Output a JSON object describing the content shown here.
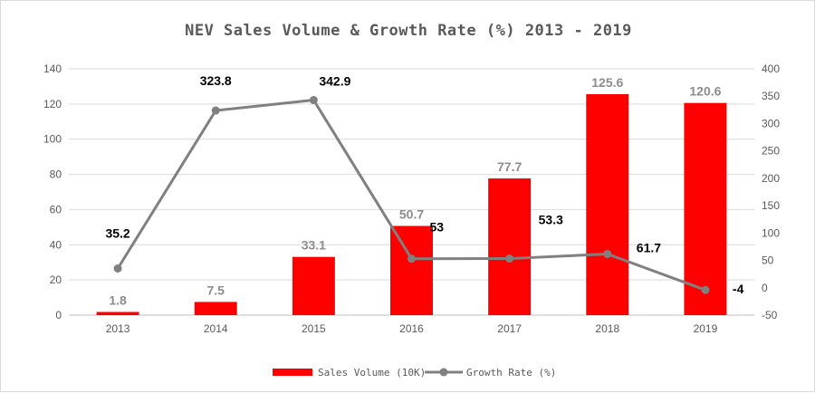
{
  "chart_data": {
    "type": "bar+line",
    "title": "NEV Sales Volume & Growth Rate (%) 2013 - 2019",
    "categories": [
      "2013",
      "2014",
      "2015",
      "2016",
      "2017",
      "2018",
      "2019"
    ],
    "series": [
      {
        "name": "Sales Volume (10K)",
        "type": "bar",
        "axis": "left",
        "color": "#ff0000",
        "values": [
          1.8,
          7.5,
          33.1,
          50.7,
          77.7,
          125.6,
          120.6
        ],
        "labels": [
          "1.8",
          "7.5",
          "33.1",
          "50.7",
          "77.7",
          "125.6",
          "120.6"
        ]
      },
      {
        "name": "Growth Rate (%)",
        "type": "line",
        "axis": "right",
        "color": "#808080",
        "values": [
          35.2,
          323.8,
          342.9,
          53,
          53.3,
          61.7,
          -4
        ],
        "labels": [
          "35.2",
          "323.8",
          "342.9",
          "53",
          "53.3",
          "61.7",
          "-4"
        ]
      }
    ],
    "y_left": {
      "min": 0,
      "max": 140,
      "step": 20,
      "ticks": [
        "0",
        "20",
        "40",
        "60",
        "80",
        "100",
        "120",
        "140"
      ]
    },
    "y_right": {
      "min": -50,
      "max": 400,
      "step": 50,
      "ticks": [
        "-50",
        "0",
        "50",
        "100",
        "150",
        "200",
        "250",
        "300",
        "350",
        "400"
      ]
    },
    "grid": true,
    "legend_position": "bottom"
  }
}
